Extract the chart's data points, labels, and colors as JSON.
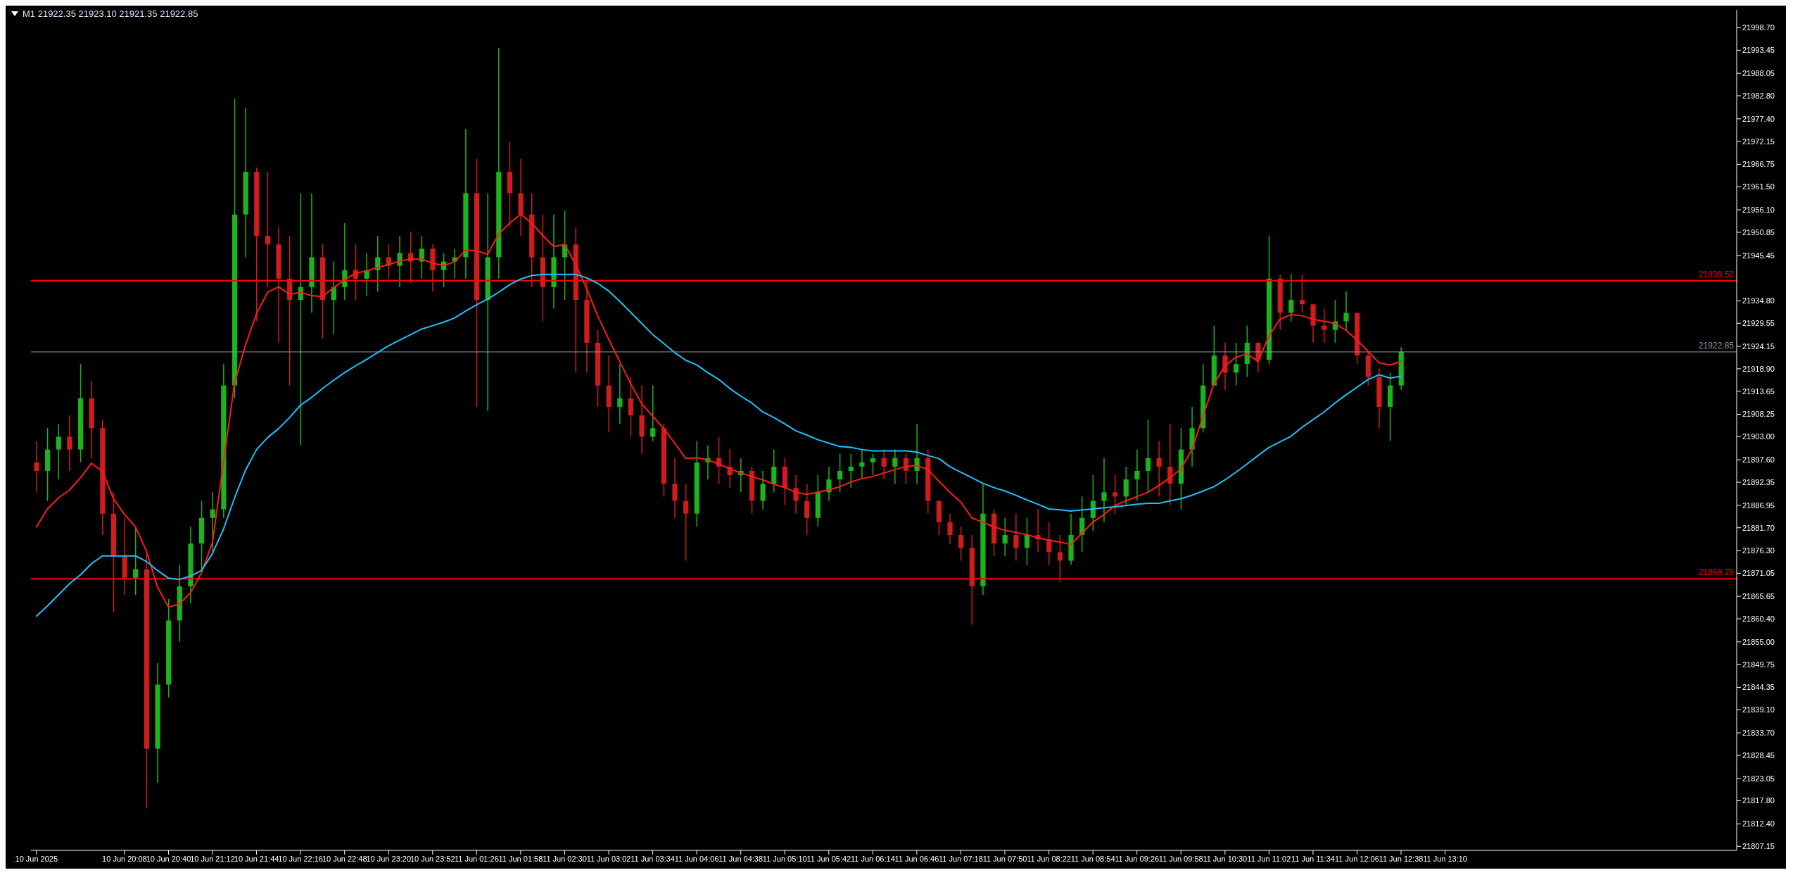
{
  "chart_data": {
    "type": "candlestick",
    "title": "M1  21922.35 21923.10 21921.35 21922.85",
    "categories": [
      "10 Jun 2025",
      null,
      null,
      null,
      null,
      null,
      null,
      null,
      "10 Jun 20:08",
      null,
      null,
      null,
      "10 Jun 20:40",
      null,
      null,
      null,
      "10 Jun 21:12",
      null,
      null,
      null,
      "10 Jun 21:44",
      null,
      null,
      null,
      "10 Jun 22:16",
      null,
      null,
      null,
      "10 Jun 22:48",
      null,
      null,
      null,
      "10 Jun 23:20",
      null,
      null,
      null,
      "10 Jun 23:52",
      null,
      null,
      null,
      "11 Jun 01:26",
      null,
      null,
      null,
      "11 Jun 01:58",
      null,
      null,
      null,
      "11 Jun 02:30",
      null,
      null,
      null,
      "11 Jun 03:02",
      null,
      null,
      null,
      "11 Jun 03:34",
      null,
      null,
      null,
      "11 Jun 04:06",
      null,
      null,
      null,
      "11 Jun 04:38",
      null,
      null,
      null,
      "11 Jun 05:10",
      null,
      null,
      null,
      "11 Jun 05:42",
      null,
      null,
      null,
      "11 Jun 06:14",
      null,
      null,
      null,
      "11 Jun 06:46",
      null,
      null,
      null,
      "11 Jun 07:18",
      null,
      null,
      null,
      "11 Jun 07:50",
      null,
      null,
      null,
      "11 Jun 08:22",
      null,
      null,
      null,
      "11 Jun 08:54",
      null,
      null,
      null,
      "11 Jun 09:26",
      null,
      null,
      null,
      "11 Jun 09:58",
      null,
      null,
      null,
      "11 Jun 10:30",
      null,
      null,
      null,
      "11 Jun 11:02",
      null,
      null,
      null,
      "11 Jun 11:34",
      null,
      null,
      null,
      "11 Jun 12:06",
      null,
      null,
      null,
      "11 Jun 12:38",
      null,
      null,
      null,
      "11 Jun 13:10",
      null,
      null,
      null,
      null,
      null,
      null,
      null,
      null,
      null,
      null,
      null,
      null,
      null,
      null,
      null,
      null,
      null,
      null,
      null,
      null,
      null,
      null,
      null,
      null,
      null,
      null
    ],
    "ohlc": [
      [
        21897,
        21902,
        21890,
        21895
      ],
      [
        21895,
        21905,
        21888,
        21900
      ],
      [
        21900,
        21906,
        21893,
        21903
      ],
      [
        21903,
        21908,
        21895,
        21900
      ],
      [
        21900,
        21920,
        21897,
        21912
      ],
      [
        21912,
        21916,
        21898,
        21905
      ],
      [
        21905,
        21907,
        21880,
        21885
      ],
      [
        21885,
        21890,
        21862,
        21875
      ],
      [
        21875,
        21884,
        21866,
        21870
      ],
      [
        21870,
        21882,
        21866,
        21872
      ],
      [
        21872,
        21876,
        21816,
        21830
      ],
      [
        21830,
        21850,
        21822,
        21845
      ],
      [
        21845,
        21865,
        21842,
        21860
      ],
      [
        21860,
        21873,
        21855,
        21868
      ],
      [
        21868,
        21882,
        21864,
        21878
      ],
      [
        21878,
        21888,
        21872,
        21884
      ],
      [
        21884,
        21890,
        21876,
        21886
      ],
      [
        21886,
        21920,
        21884,
        21915
      ],
      [
        21915,
        21982,
        21912,
        21955
      ],
      [
        21955,
        21980,
        21945,
        21965
      ],
      [
        21965,
        21966,
        21930,
        21950
      ],
      [
        21950,
        21965,
        21938,
        21948
      ],
      [
        21948,
        21952,
        21925,
        21940
      ],
      [
        21940,
        21950,
        21915,
        21935
      ],
      [
        21935,
        21960,
        21901,
        21938
      ],
      [
        21938,
        21960,
        21932,
        21945
      ],
      [
        21945,
        21948,
        21926,
        21935
      ],
      [
        21935,
        21944,
        21927,
        21938
      ],
      [
        21938,
        21953,
        21935,
        21942
      ],
      [
        21942,
        21948,
        21935,
        21940
      ],
      [
        21940,
        21946,
        21936,
        21942
      ],
      [
        21942,
        21950,
        21937,
        21945
      ],
      [
        21945,
        21948,
        21940,
        21943
      ],
      [
        21943,
        21950,
        21938,
        21946
      ],
      [
        21946,
        21951,
        21939,
        21944
      ],
      [
        21944,
        21950,
        21940,
        21947
      ],
      [
        21947,
        21948,
        21937,
        21942
      ],
      [
        21942,
        21946,
        21938,
        21944
      ],
      [
        21944,
        21947,
        21940,
        21945
      ],
      [
        21945,
        21975,
        21940,
        21960
      ],
      [
        21960,
        21968,
        21910,
        21935
      ],
      [
        21935,
        21960,
        21909,
        21945
      ],
      [
        21945,
        21994,
        21940,
        21965
      ],
      [
        21965,
        21972,
        21952,
        21960
      ],
      [
        21960,
        21968,
        21950,
        21955
      ],
      [
        21955,
        21960,
        21938,
        21945
      ],
      [
        21945,
        21955,
        21930,
        21938
      ],
      [
        21938,
        21955,
        21933,
        21945
      ],
      [
        21945,
        21956,
        21935,
        21948
      ],
      [
        21948,
        21952,
        21918,
        21935
      ],
      [
        21935,
        21940,
        21918,
        21925
      ],
      [
        21925,
        21928,
        21910,
        21915
      ],
      [
        21915,
        21922,
        21904,
        21910
      ],
      [
        21910,
        21920,
        21906,
        21912
      ],
      [
        21912,
        21917,
        21903,
        21908
      ],
      [
        21908,
        21915,
        21899,
        21903
      ],
      [
        21903,
        21915,
        21902,
        21905
      ],
      [
        21905,
        21906,
        21889,
        21892
      ],
      [
        21892,
        21898,
        21884,
        21888
      ],
      [
        21888,
        21892,
        21874,
        21885
      ],
      [
        21885,
        21902,
        21882,
        21897
      ],
      [
        21897,
        21901,
        21893,
        21898
      ],
      [
        21898,
        21903,
        21892,
        21896
      ],
      [
        21896,
        21900,
        21891,
        21894
      ],
      [
        21894,
        21898,
        21890,
        21895
      ],
      [
        21895,
        21896,
        21885,
        21888
      ],
      [
        21888,
        21895,
        21886,
        21892
      ],
      [
        21892,
        21900,
        21890,
        21896
      ],
      [
        21896,
        21898,
        21887,
        21891
      ],
      [
        21891,
        21894,
        21885,
        21888
      ],
      [
        21888,
        21892,
        21880,
        21884
      ],
      [
        21884,
        21894,
        21882,
        21890
      ],
      [
        21890,
        21896,
        21888,
        21893
      ],
      [
        21893,
        21899,
        21890,
        21895
      ],
      [
        21895,
        21899,
        21891,
        21896
      ],
      [
        21896,
        21900,
        21893,
        21897
      ],
      [
        21897,
        21899,
        21894,
        21898
      ],
      [
        21898,
        21900,
        21893,
        21896
      ],
      [
        21896,
        21900,
        21892,
        21898
      ],
      [
        21898,
        21899,
        21892,
        21895
      ],
      [
        21895,
        21906,
        21892,
        21898
      ],
      [
        21898,
        21900,
        21885,
        21888
      ],
      [
        21888,
        21888,
        21880,
        21883
      ],
      [
        21883,
        21885,
        21878,
        21880
      ],
      [
        21880,
        21882,
        21874,
        21877
      ],
      [
        21877,
        21880,
        21859,
        21868
      ],
      [
        21868,
        21892,
        21866,
        21885
      ],
      [
        21885,
        21886,
        21875,
        21878
      ],
      [
        21878,
        21884,
        21875,
        21880
      ],
      [
        21880,
        21885,
        21874,
        21877
      ],
      [
        21877,
        21884,
        21873,
        21880
      ],
      [
        21880,
        21886,
        21876,
        21879
      ],
      [
        21879,
        21883,
        21873,
        21876
      ],
      [
        21876,
        21880,
        21869,
        21874
      ],
      [
        21874,
        21885,
        21873,
        21880
      ],
      [
        21880,
        21889,
        21876,
        21884
      ],
      [
        21884,
        21894,
        21881,
        21888
      ],
      [
        21888,
        21898,
        21883,
        21890
      ],
      [
        21890,
        21894,
        21885,
        21889
      ],
      [
        21889,
        21896,
        21887,
        21893
      ],
      [
        21893,
        21900,
        21888,
        21895
      ],
      [
        21895,
        21907,
        21890,
        21898
      ],
      [
        21898,
        21902,
        21889,
        21896
      ],
      [
        21896,
        21906,
        21887,
        21892
      ],
      [
        21892,
        21905,
        21886,
        21900
      ],
      [
        21900,
        21910,
        21896,
        21905
      ],
      [
        21905,
        21920,
        21904,
        21915
      ],
      [
        21915,
        21929,
        21915,
        21922
      ],
      [
        21922,
        21925,
        21914,
        21918
      ],
      [
        21918,
        21925,
        21915,
        21920
      ],
      [
        21920,
        21929,
        21917,
        21925
      ],
      [
        21925,
        21925,
        21918,
        21921
      ],
      [
        21921,
        21950,
        21920,
        21940
      ],
      [
        21940,
        21941,
        21928,
        21932
      ],
      [
        21932,
        21941,
        21930,
        21935
      ],
      [
        21935,
        21941,
        21932,
        21934
      ],
      [
        21934,
        21934,
        21925,
        21929
      ],
      [
        21929,
        21933,
        21925,
        21928
      ],
      [
        21928,
        21935,
        21925,
        21930
      ],
      [
        21930,
        21937,
        21928,
        21932
      ],
      [
        21932,
        21932,
        21920,
        21922
      ],
      [
        21922,
        21923,
        21915,
        21917
      ],
      [
        21917,
        21919,
        21905,
        21910
      ],
      [
        21910,
        21918,
        21902,
        21915
      ],
      [
        21915,
        21924,
        21914,
        21922.85
      ],
      null,
      null,
      null,
      null,
      null,
      null,
      null,
      null,
      null,
      null,
      null,
      null,
      null,
      null,
      null,
      null,
      null,
      null,
      null,
      null,
      null,
      null,
      null,
      null,
      null,
      null,
      null,
      null,
      null,
      null
    ],
    "colors": [
      "#d01c1c",
      "#1db31d",
      "#1db31d",
      "#d01c1c",
      "#1db31d",
      "#d01c1c",
      "#d01c1c",
      "#d01c1c",
      "#d01c1c",
      "#1db31d",
      "#d01c1c",
      "#1db31d",
      "#1db31d",
      "#1db31d",
      "#1db31d",
      "#1db31d",
      "#1db31d",
      "#1db31d",
      "#1db31d",
      "#1db31d",
      "#d01c1c",
      "#d01c1c",
      "#d01c1c",
      "#d01c1c",
      "#1db31d",
      "#1db31d",
      "#d01c1c",
      "#1db31d",
      "#1db31d",
      "#d01c1c",
      "#1db31d",
      "#1db31d",
      "#d01c1c",
      "#1db31d",
      "#d01c1c",
      "#1db31d",
      "#d01c1c",
      "#1db31d",
      "#1db31d",
      "#1db31d",
      "#d01c1c",
      "#1db31d",
      "#1db31d",
      "#d01c1c",
      "#d01c1c",
      "#d01c1c",
      "#d01c1c",
      "#1db31d",
      "#1db31d",
      "#d01c1c",
      "#d01c1c",
      "#d01c1c",
      "#d01c1c",
      "#1db31d",
      "#d01c1c",
      "#d01c1c",
      "#1db31d",
      "#d01c1c",
      "#d01c1c",
      "#d01c1c",
      "#1db31d",
      "#1db31d",
      "#d01c1c",
      "#d01c1c",
      "#1db31d",
      "#d01c1c",
      "#1db31d",
      "#1db31d",
      "#d01c1c",
      "#d01c1c",
      "#d01c1c",
      "#1db31d",
      "#1db31d",
      "#1db31d",
      "#1db31d",
      "#1db31d",
      "#1db31d",
      "#d01c1c",
      "#1db31d",
      "#d01c1c",
      "#1db31d",
      "#d01c1c",
      "#d01c1c",
      "#d01c1c",
      "#d01c1c",
      "#d01c1c",
      "#1db31d",
      "#d01c1c",
      "#1db31d",
      "#d01c1c",
      "#1db31d",
      "#d01c1c",
      "#d01c1c",
      "#d01c1c",
      "#1db31d",
      "#1db31d",
      "#1db31d",
      "#1db31d",
      "#d01c1c",
      "#1db31d",
      "#1db31d",
      "#1db31d",
      "#d01c1c",
      "#d01c1c",
      "#1db31d",
      "#1db31d",
      "#1db31d",
      "#1db31d",
      "#d01c1c",
      "#1db31d",
      "#1db31d",
      "#d01c1c",
      "#1db31d",
      "#d01c1c",
      "#1db31d",
      "#d01c1c",
      "#d01c1c",
      "#d01c1c",
      "#1db31d",
      "#1db31d",
      "#d01c1c",
      "#d01c1c",
      "#d01c1c",
      "#1db31d",
      "#1db31d",
      null,
      null,
      null,
      null,
      null,
      null,
      null,
      null,
      null,
      null,
      null,
      null,
      null,
      null,
      null,
      null,
      null,
      null,
      null,
      null,
      null,
      null,
      null,
      null,
      null,
      null,
      null,
      null,
      null,
      null
    ],
    "series": [
      {
        "type": "line",
        "color": "#ff1a1a",
        "values": [
          21881.9,
          21886.1,
          21888.7,
          21890.5,
          21893.4,
          21896.8,
          21894.9,
          21888.5,
          21884.8,
          21881.9,
          21876.2,
          21867.8,
          21863.1,
          21863.9,
          21866.5,
          21871.2,
          21878.3,
          21897.1,
          21915.6,
          21924.5,
          21931.8,
          21936.8,
          21938.1,
          21936.3,
          21936.8,
          21936.0,
          21935.8,
          21937.9,
          21939.7,
          21941.3,
          21941.8,
          21942.6,
          21943.3,
          21944.1,
          21944.6,
          21944.6,
          21943.6,
          21943.1,
          21943.9,
          21946.7,
          21946.5,
          21945.7,
          21950.4,
          21953.0,
          21955.1,
          21953.0,
          21950.1,
          21947.5,
          21948.0,
          21943.3,
          21937.6,
          21931.3,
          21925.8,
          21920.6,
          21915.4,
          21910.7,
          21907.8,
          21904.9,
          21901.5,
          21897.9,
          21898.1,
          21897.6,
          21896.6,
          21895.5,
          21894.5,
          21893.7,
          21892.9,
          21891.9,
          21891.1,
          21890.0,
          21889.5,
          21890.0,
          21890.6,
          21891.3,
          21892.4,
          21893.2,
          21893.7,
          21894.5,
          21895.3,
          21896.0,
          21896.3,
          21895.3,
          21892.6,
          21890.0,
          21887.7,
          21884.0,
          21883.0,
          21881.9,
          21881.1,
          21880.6,
          21880.1,
          21879.3,
          21878.8,
          21878.3,
          21877.8,
          21880.4,
          21883.0,
          21884.8,
          21886.9,
          21888.0,
          21889.0,
          21890.0,
          21891.6,
          21893.4,
          21895.5,
          21900.0,
          21907.8,
          21915.4,
          21919.6,
          21921.6,
          21922.4,
          21920.6,
          21926.6,
          21930.5,
          21931.6,
          21931.3,
          21930.5,
          21930.0,
          21929.5,
          21927.9,
          21925.6,
          21923.0,
          21920.3,
          21919.8,
          21920.6,
          null,
          null,
          null,
          null,
          null,
          null,
          null,
          null,
          null,
          null,
          null,
          null,
          null,
          null,
          null,
          null,
          null,
          null,
          null,
          null,
          null,
          null,
          null,
          null,
          null,
          null,
          null,
          null,
          null,
          null
        ]
      },
      {
        "type": "line",
        "color": "#1ec0ff",
        "values": [
          21861.0,
          21863.4,
          21866.0,
          21868.6,
          21870.7,
          21873.3,
          21875.1,
          21875.1,
          21875.1,
          21875.1,
          21873.8,
          21871.7,
          21869.9,
          21869.6,
          21870.4,
          21871.7,
          21875.7,
          21881.4,
          21888.7,
          21895.2,
          21900.0,
          21902.8,
          21904.9,
          21907.5,
          21910.4,
          21912.2,
          21914.3,
          21916.2,
          21918.0,
          21919.6,
          21921.1,
          21922.7,
          21924.3,
          21925.6,
          21926.9,
          21928.2,
          21929.0,
          21929.8,
          21930.8,
          21932.4,
          21933.9,
          21935.2,
          21936.8,
          21938.6,
          21939.9,
          21940.7,
          21941.0,
          21941.0,
          21941.0,
          21941.0,
          21940.2,
          21938.9,
          21937.1,
          21934.7,
          21932.1,
          21929.5,
          21926.9,
          21924.8,
          21922.7,
          21920.9,
          21919.8,
          21918.0,
          21916.4,
          21914.3,
          21912.5,
          21910.9,
          21908.8,
          21907.5,
          21906.0,
          21904.4,
          21903.4,
          21902.3,
          21901.5,
          21900.7,
          21900.5,
          21900.0,
          21899.7,
          21899.7,
          21899.7,
          21899.7,
          21899.4,
          21898.6,
          21897.9,
          21896.0,
          21894.7,
          21893.4,
          21892.1,
          21891.1,
          21890.3,
          21889.3,
          21888.2,
          21887.2,
          21886.1,
          21885.9,
          21885.6,
          21885.9,
          21886.1,
          21886.4,
          21886.6,
          21886.9,
          21887.2,
          21887.4,
          21887.4,
          21888.0,
          21888.5,
          21889.3,
          21890.3,
          21891.3,
          21892.9,
          21894.7,
          21896.6,
          21898.6,
          21900.5,
          21901.8,
          21903.1,
          21905.2,
          21907.0,
          21908.8,
          21910.9,
          21912.8,
          21914.6,
          21916.4,
          21917.5,
          21916.7,
          21917.2,
          null,
          null,
          null,
          null,
          null,
          null,
          null,
          null,
          null,
          null,
          null,
          null,
          null,
          null,
          null,
          null,
          null,
          null,
          null,
          null,
          null,
          null,
          null,
          null,
          null,
          null,
          null,
          null,
          null,
          null
        ]
      }
    ],
    "ylim": [
      21806.2,
      22002.9
    ],
    "yticks": [
      {
        "value": 21998.7,
        "label": "21998.70"
      },
      21993.45,
      21988.05,
      {
        "value": 21982.8,
        "label": "21982.80"
      },
      {
        "value": 21977.4,
        "label": "21977.40"
      },
      21972.15,
      21966.75,
      {
        "value": 21961.5,
        "label": "21961.50"
      },
      {
        "value": 21956.1,
        "label": "21956.10"
      },
      21950.85,
      21945.45,
      {
        "value": 21934.8,
        "label": "21934.80"
      },
      21929.55,
      21924.15,
      {
        "value": 21918.9,
        "label": "21918.90"
      },
      21913.65,
      21908.25,
      {
        "value": 21903,
        "label": "21903.00"
      },
      {
        "value": 21897.6,
        "label": "21897.60"
      },
      21892.35,
      21886.95,
      {
        "value": 21881.7,
        "label": "21881.70"
      },
      {
        "value": 21876.3,
        "label": "21876.30"
      },
      21871.05,
      21865.65,
      {
        "value": 21860.4,
        "label": "21860.40"
      },
      {
        "value": 21855,
        "label": "21855.00"
      },
      21849.75,
      21844.35,
      {
        "value": 21839.1,
        "label": "21839.10"
      },
      {
        "value": 21833.7,
        "label": "21833.70"
      },
      21828.45,
      21823.05,
      {
        "value": 21817.8,
        "label": "21817.80"
      },
      {
        "value": 21812.4,
        "label": "21812.40"
      },
      21807.15
    ],
    "ref_lines": [
      {
        "axis": "y",
        "value": 21939.52,
        "label": "21939.52",
        "color": "#ff0000"
      },
      {
        "axis": "y",
        "value": 21869.76,
        "label": "21869.76",
        "color": "#ff0000"
      },
      {
        "axis": "y",
        "value": 21922.85,
        "label": "21922.85",
        "color": "#8a9aa8"
      }
    ]
  }
}
